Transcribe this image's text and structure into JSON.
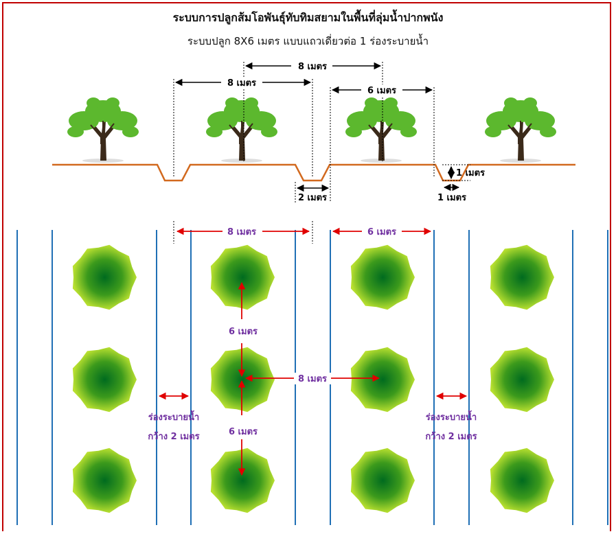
{
  "title": "ระบบการปลูกส้มโอพันธุ์ทับทิมสยามในพื้นที่ลุ่มน้ำปากพนัง",
  "subtitle": "ระบบปลูก 8X6 เมตร แบบแถวเดี่ยวต่อ 1 ร่องระบายน้ำ",
  "profile": {
    "dim_8m_top": "8 เมตร",
    "dim_8m_left": "8 เมตร",
    "dim_6m": "6 เมตร",
    "dim_2m": "2 เมตร",
    "dim_1m_depth": "1 เมตร",
    "dim_1m_width": "1 เมตร"
  },
  "plan": {
    "dim_8m": "8 เมตร",
    "dim_6m": "6 เมตร",
    "spacing_6m_upper": "6 เมตร",
    "spacing_6m_lower": "6 เมตร",
    "spacing_8m": "8 เมตร",
    "drain_label_left_1": "ร่องระบายน้ำ",
    "drain_label_left_2": "กว้าง 2 เมตร",
    "drain_label_right_1": "ร่องระบายน้ำ",
    "drain_label_right_2": "กว้าง 2 เมตร"
  },
  "colors": {
    "frame": "#c00000",
    "ground": "#d2691e",
    "drain_line": "#1f6fb5",
    "dimension_red": "#e00000",
    "label_purple": "#7030a0",
    "tree_canopy": "#5cb82e",
    "tree_trunk": "#3b2a1a"
  }
}
